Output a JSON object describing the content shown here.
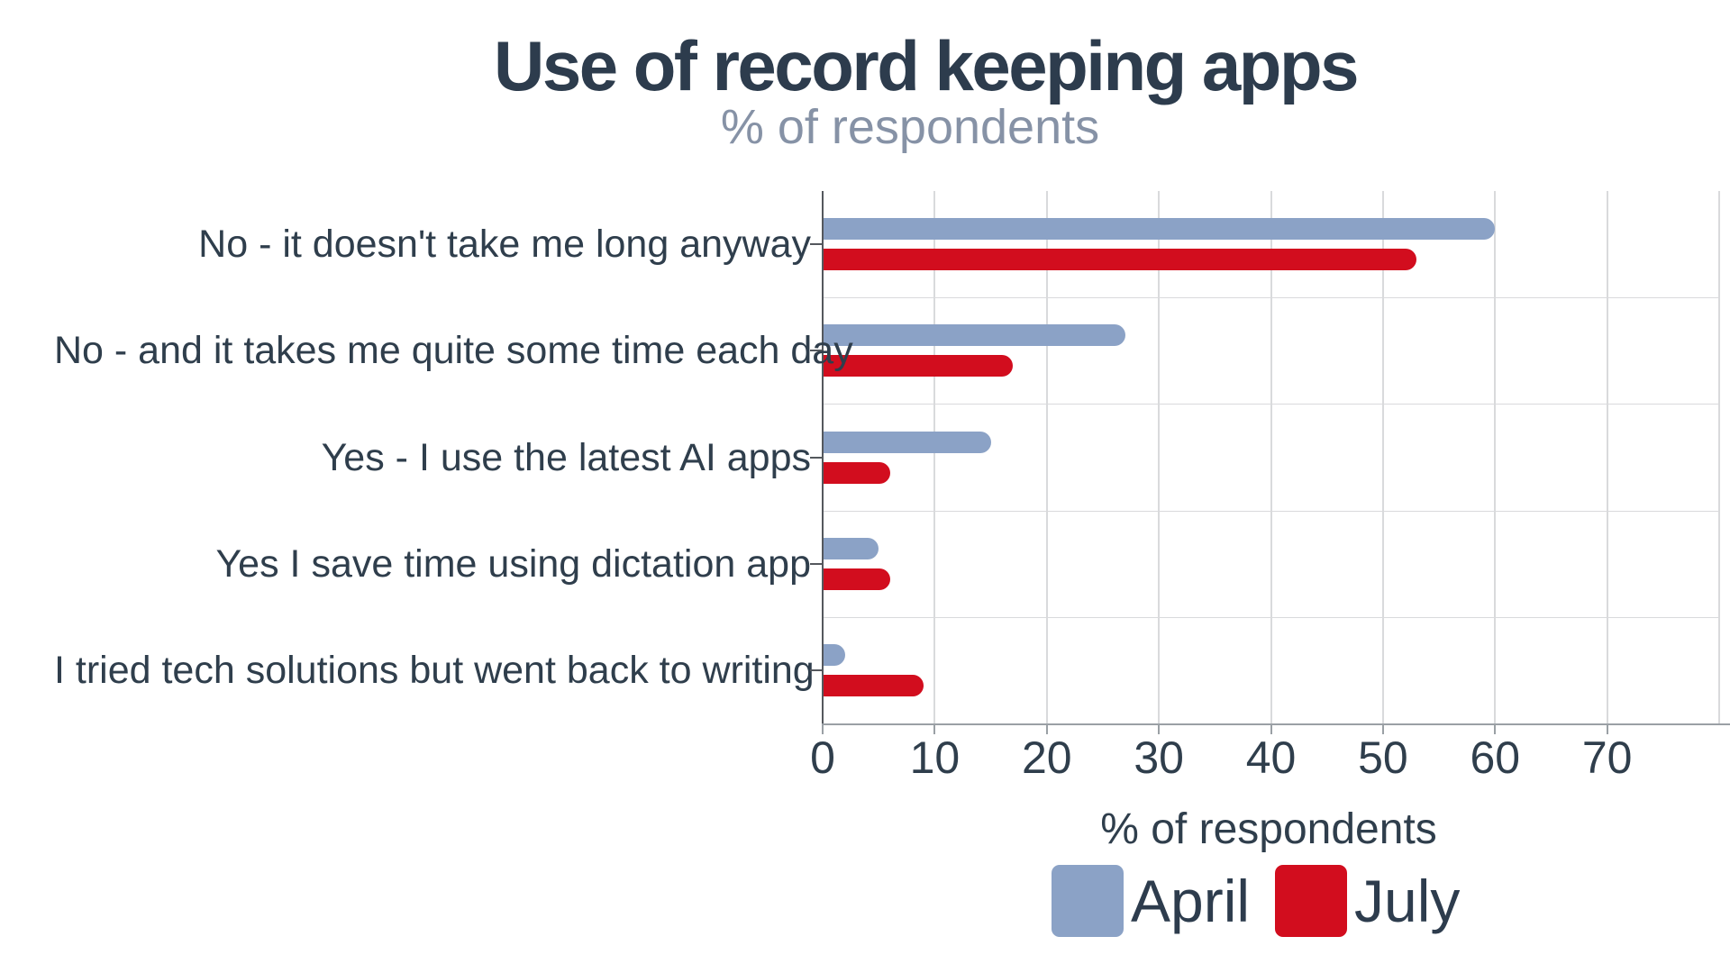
{
  "chart_data": {
    "type": "bar",
    "orientation": "horizontal",
    "title": "Use of record keeping apps",
    "subtitle": "% of respondents",
    "xlabel": "% of respondents",
    "categories": [
      "No - it doesn't take me long anyway",
      "No - and it takes me quite some time each day",
      "Yes - I use the latest AI apps",
      "Yes I save time using dictation app",
      "I tried tech solutions but went back to writing"
    ],
    "series": [
      {
        "name": "April",
        "color": "#8ba2c6",
        "values": [
          60,
          27,
          15,
          5,
          2
        ]
      },
      {
        "name": "July",
        "color": "#d20d1e",
        "values": [
          53,
          17,
          6,
          6,
          9
        ]
      }
    ],
    "xlim": [
      0,
      80
    ],
    "xticks": [
      0,
      10,
      20,
      30,
      40,
      50,
      60,
      70
    ],
    "grid": true,
    "legend_position": "bottom",
    "colors": {
      "title_text": "#2d3c4d",
      "subtitle_text": "#8692a6",
      "label_text": "#2f3e4c",
      "grid_line": "#d9dadc",
      "x_spine": "#9aa0a5",
      "y_spine": "#54585d"
    }
  }
}
